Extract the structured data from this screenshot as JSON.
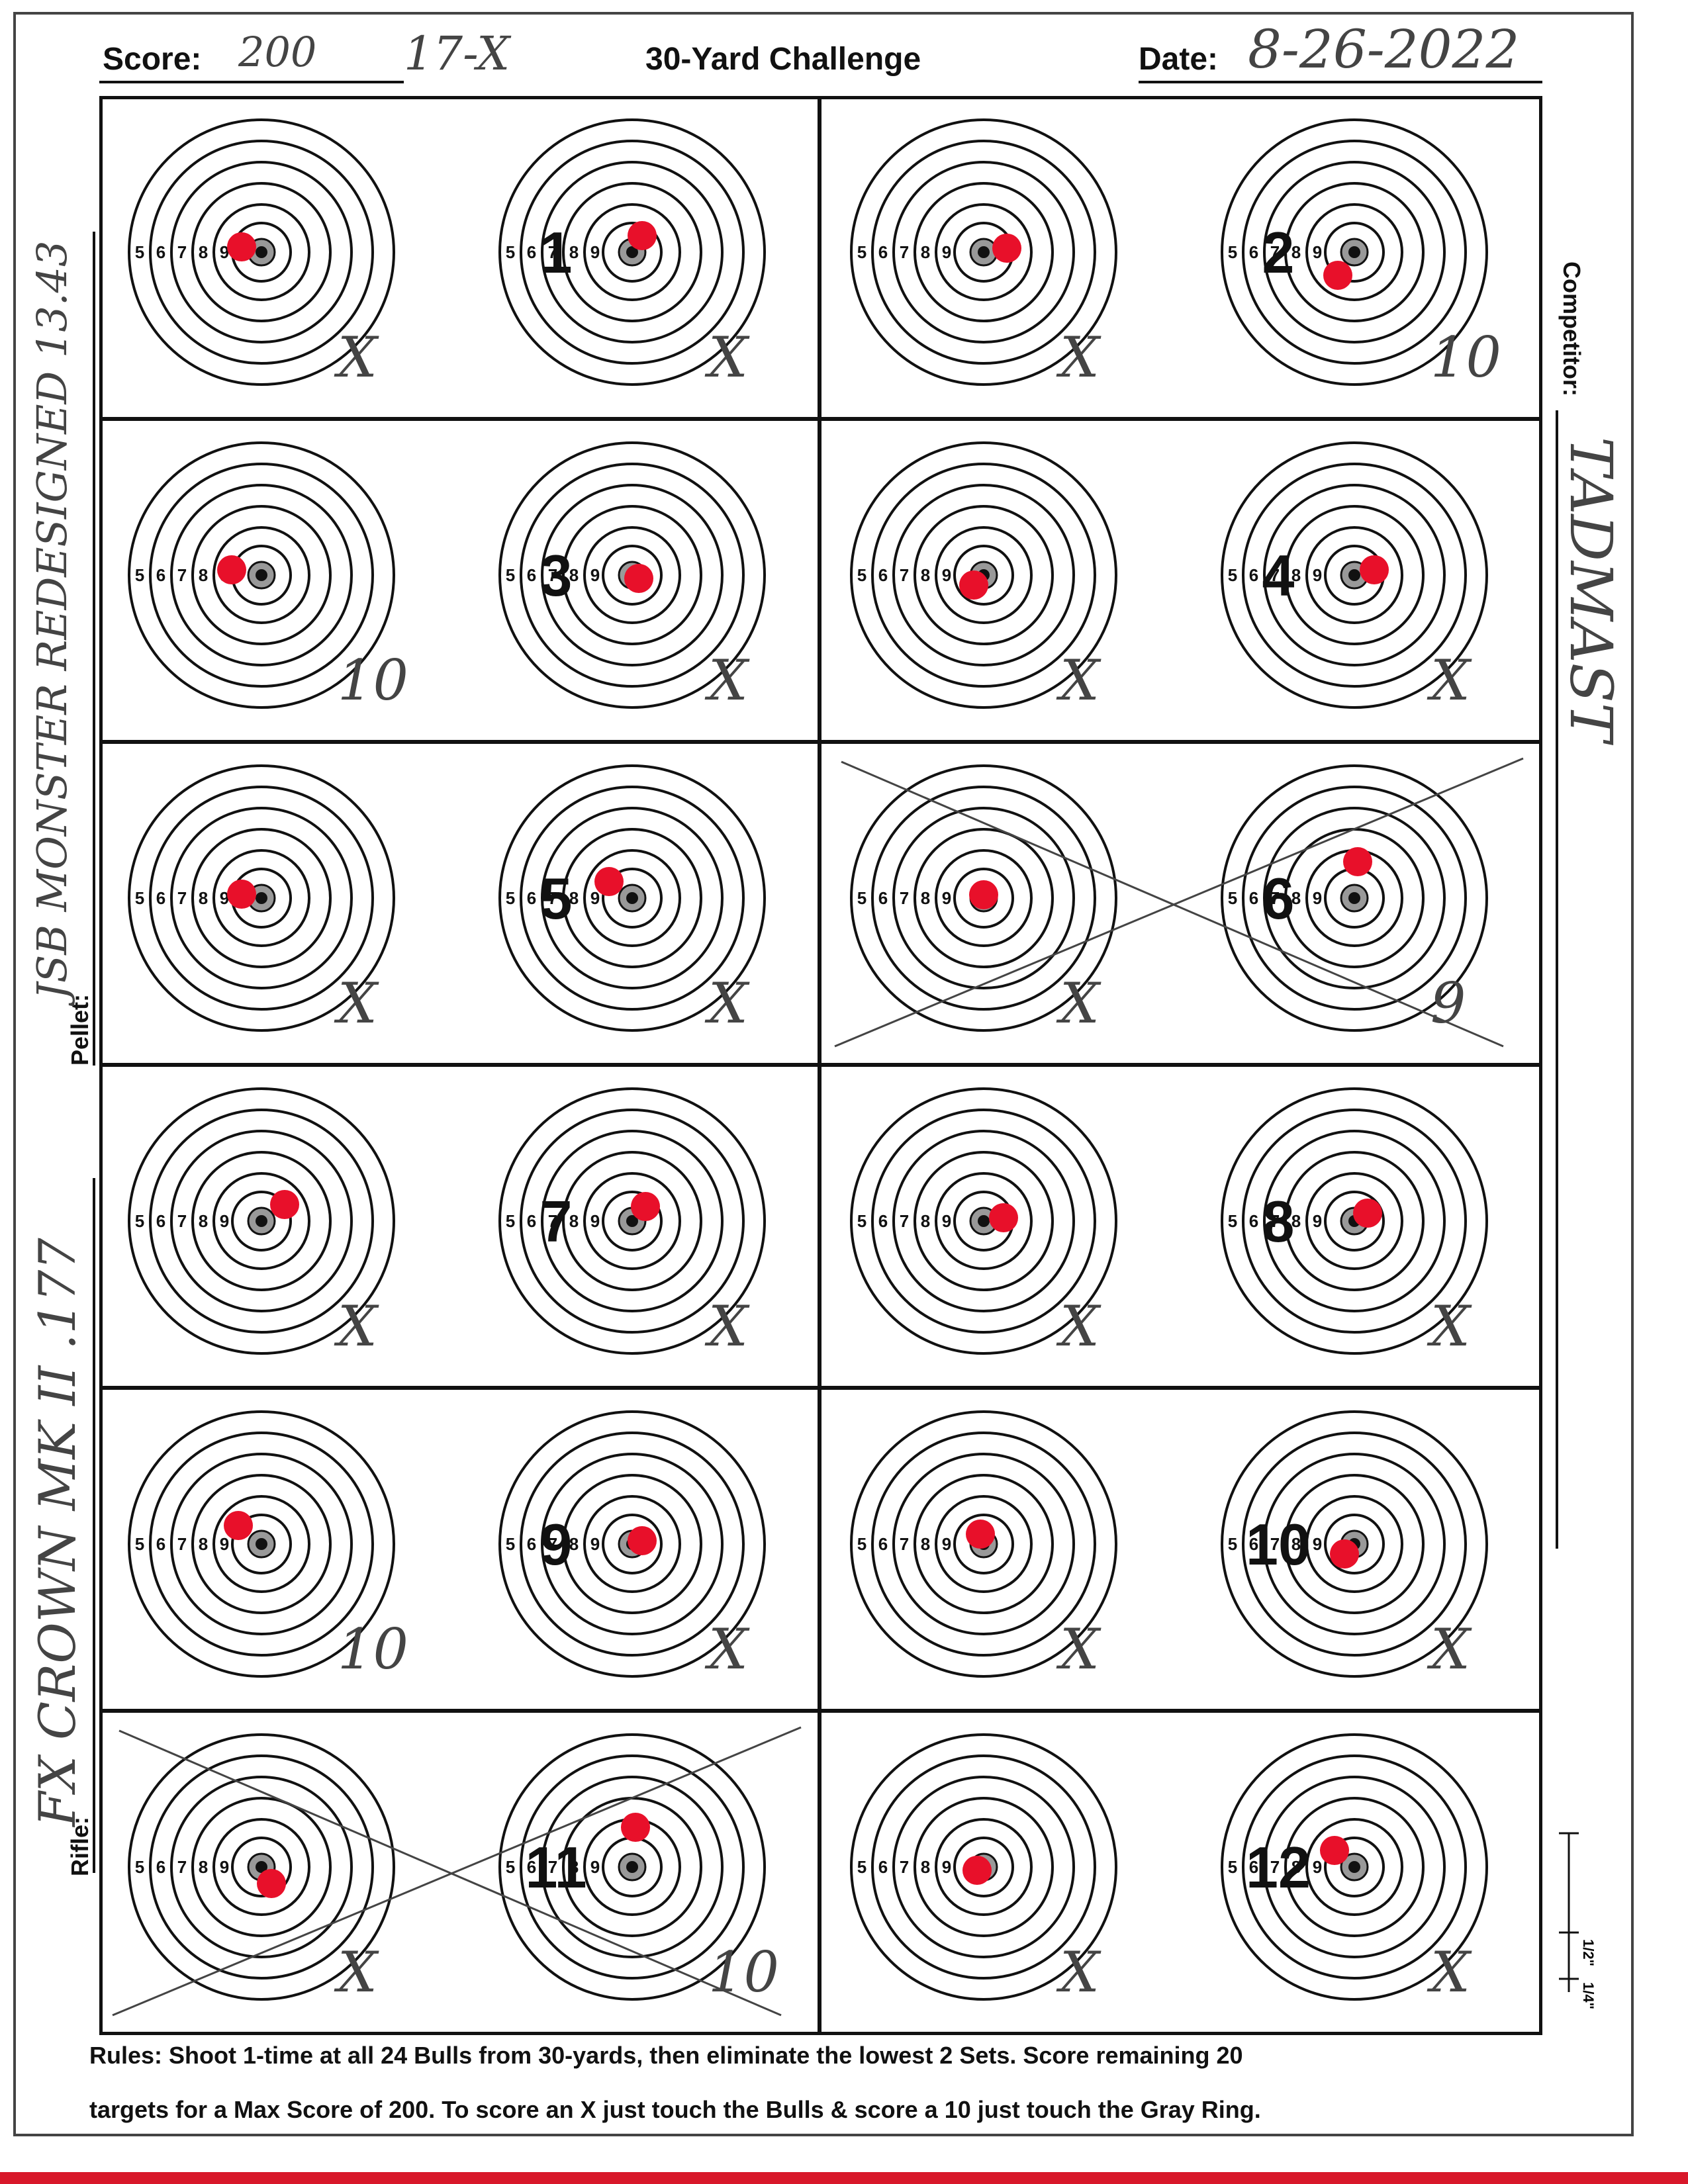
{
  "header": {
    "score_label": "Score:",
    "score_value": "200",
    "x_count": "17-X",
    "title": "30-Yard Challenge",
    "date_label": "Date:",
    "date_value": "8-26-2022"
  },
  "side": {
    "competitor_label": "Competitor:",
    "competitor_value": "TADMAST",
    "pellet_label": "Pellet:",
    "pellet_value": "JSB MONSTER REDESIGNED 13.43",
    "rifle_label": "Rifle:",
    "rifle_value": "FX CROWN MK II .177"
  },
  "ring_labels": [
    "5",
    "6",
    "7",
    "8",
    "9"
  ],
  "sets": [
    {
      "number": "1",
      "left_mark": "X",
      "right_mark": "X",
      "crossed": false
    },
    {
      "number": "2",
      "left_mark": "X",
      "right_mark": "10",
      "crossed": false
    },
    {
      "number": "3",
      "left_mark": "10",
      "right_mark": "X",
      "crossed": false
    },
    {
      "number": "4",
      "left_mark": "X",
      "right_mark": "X",
      "crossed": false
    },
    {
      "number": "5",
      "left_mark": "X",
      "right_mark": "X",
      "crossed": false
    },
    {
      "number": "6",
      "left_mark": "X",
      "right_mark": "9",
      "crossed": true
    },
    {
      "number": "7",
      "left_mark": "X",
      "right_mark": "X",
      "crossed": false
    },
    {
      "number": "8",
      "left_mark": "X",
      "right_mark": "X",
      "crossed": false
    },
    {
      "number": "9",
      "left_mark": "10",
      "right_mark": "X",
      "crossed": false
    },
    {
      "number": "10",
      "left_mark": "X",
      "right_mark": "X",
      "crossed": false
    },
    {
      "number": "11",
      "left_mark": "X",
      "right_mark": "10",
      "crossed": true
    },
    {
      "number": "12",
      "left_mark": "X",
      "right_mark": "X",
      "crossed": false
    }
  ],
  "scale_labels": [
    "1/4\"",
    "1/2\""
  ],
  "rules": {
    "line1": "Rules: Shoot 1-time at all 24 Bulls from 30-yards, then eliminate the lowest 2 Sets. Score remaining 20",
    "line2": "targets for a Max Score of 200. To score an X just touch the Bulls & score a 10 just touch the Gray Ring."
  },
  "colors": {
    "ink": "#111111",
    "pen": "#444444",
    "hit": "#e8102a",
    "accent_red": "#d8182a"
  }
}
